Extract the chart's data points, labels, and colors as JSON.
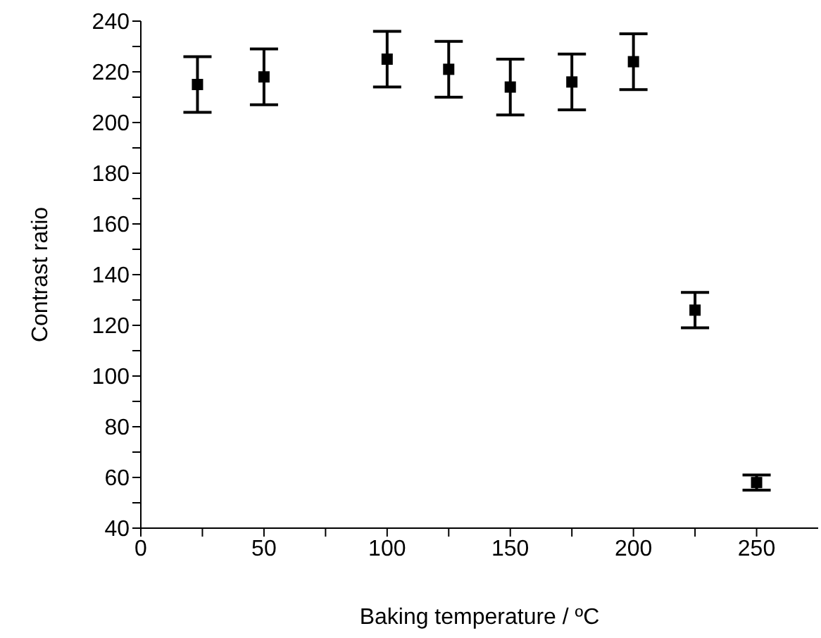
{
  "chart_data": {
    "type": "scatter",
    "xlabel": "Baking temperature / ºC",
    "ylabel": "Contrast ratio",
    "x": [
      23,
      50,
      100,
      125,
      150,
      175,
      200,
      225,
      250
    ],
    "values": [
      215,
      218,
      225,
      221,
      214,
      216,
      224,
      126,
      58
    ],
    "errors": [
      11,
      11,
      11,
      11,
      11,
      11,
      11,
      7,
      3
    ],
    "color": "#000000",
    "marker": "square",
    "grid": false,
    "legend": false,
    "xlim": [
      0,
      275
    ],
    "xticks": [
      0,
      {
        "value": 25,
        "label": null
      },
      50,
      {
        "value": 75,
        "label": null
      },
      100,
      {
        "value": 125,
        "label": null
      },
      150,
      {
        "value": 175,
        "label": null
      },
      200,
      {
        "value": 225,
        "label": null
      },
      250
    ],
    "ylim": [
      40,
      240
    ],
    "yticks": [
      40,
      {
        "value": 50,
        "label": null
      },
      60,
      {
        "value": 70,
        "label": null
      },
      80,
      {
        "value": 90,
        "label": null
      },
      100,
      {
        "value": 110,
        "label": null
      },
      120,
      {
        "value": 130,
        "label": null
      },
      140,
      {
        "value": 150,
        "label": null
      },
      160,
      {
        "value": 170,
        "label": null
      },
      180,
      {
        "value": 190,
        "label": null
      },
      200,
      {
        "value": 210,
        "label": null
      },
      220,
      {
        "value": 230,
        "label": null
      },
      240
    ]
  }
}
